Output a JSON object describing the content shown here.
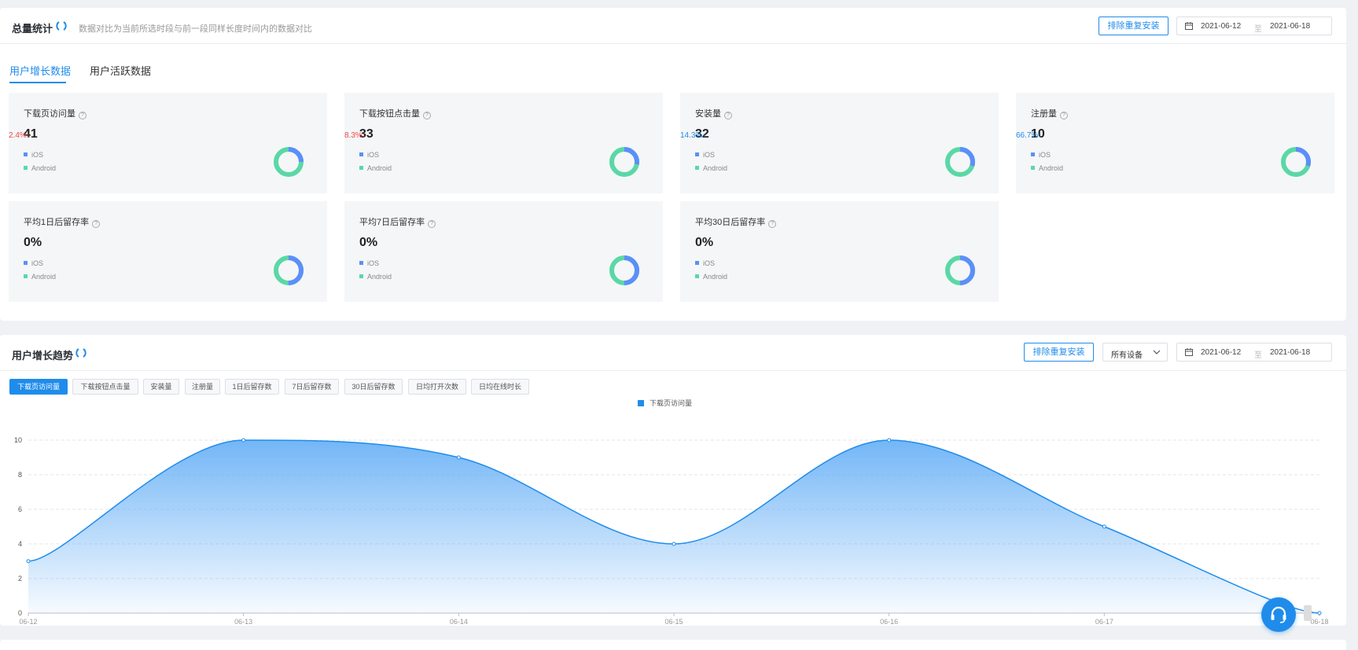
{
  "overview": {
    "title": "总量统计",
    "description": "数据对比为当前所选时段与前一段同样长度时间内的数据对比",
    "exclude_button": "排除重复安装",
    "date_start": "2021-06-12",
    "date_sep": "至",
    "date_end": "2021-06-18",
    "tabs": [
      {
        "label": "用户增长数据",
        "active": true
      },
      {
        "label": "用户活跃数据",
        "active": false
      }
    ],
    "legend_ios": "iOS",
    "legend_android": "Android",
    "colors": {
      "ios": "#5b8ff9",
      "android": "#5ad8a6",
      "up": "#1f8ceb",
      "down": "#f04848"
    },
    "cards": [
      {
        "title": "下载页访问量",
        "value": "41",
        "pct": "2.4%",
        "trend": "down",
        "ios_share": 0.25
      },
      {
        "title": "下载按钮点击量",
        "value": "33",
        "pct": "8.3%",
        "trend": "down",
        "ios_share": 0.28
      },
      {
        "title": "安装量",
        "value": "32",
        "pct": "14.3%",
        "trend": "up",
        "ios_share": 0.3
      },
      {
        "title": "注册量",
        "value": "10",
        "pct": "66.7%",
        "trend": "up",
        "ios_share": 0.3
      },
      {
        "title": "平均1日后留存率",
        "value": "0%",
        "pct": "",
        "trend": "none",
        "ios_share": 0.5
      },
      {
        "title": "平均7日后留存率",
        "value": "0%",
        "pct": "",
        "trend": "none",
        "ios_share": 0.5
      },
      {
        "title": "平均30日后留存率",
        "value": "0%",
        "pct": "",
        "trend": "none",
        "ios_share": 0.5
      }
    ]
  },
  "trend": {
    "title": "用户增长趋势",
    "exclude_button": "排除重复安装",
    "device_select": "所有设备",
    "date_start": "2021-06-12",
    "date_sep": "至",
    "date_end": "2021-06-18",
    "metrics": [
      {
        "label": "下载页访问量",
        "active": true
      },
      {
        "label": "下载按钮点击量",
        "active": false
      },
      {
        "label": "安装量",
        "active": false
      },
      {
        "label": "注册量",
        "active": false
      },
      {
        "label": "1日后留存数",
        "active": false
      },
      {
        "label": "7日后留存数",
        "active": false
      },
      {
        "label": "30日后留存数",
        "active": false
      },
      {
        "label": "日均打开次数",
        "active": false
      },
      {
        "label": "日均在线时长",
        "active": false
      }
    ]
  },
  "chart_data": {
    "type": "area",
    "x": [
      "06-12",
      "06-13",
      "06-14",
      "06-15",
      "06-16",
      "06-17",
      "06-18"
    ],
    "series": [
      {
        "name": "下载页访问量",
        "values": [
          3,
          10,
          9,
          4,
          10,
          5,
          0
        ],
        "color": "#1f8ceb"
      }
    ],
    "yticks": [
      0,
      2,
      4,
      6,
      8,
      10
    ],
    "ylim": [
      0,
      10
    ],
    "grid": true,
    "legend": "top-center",
    "smooth": true
  }
}
